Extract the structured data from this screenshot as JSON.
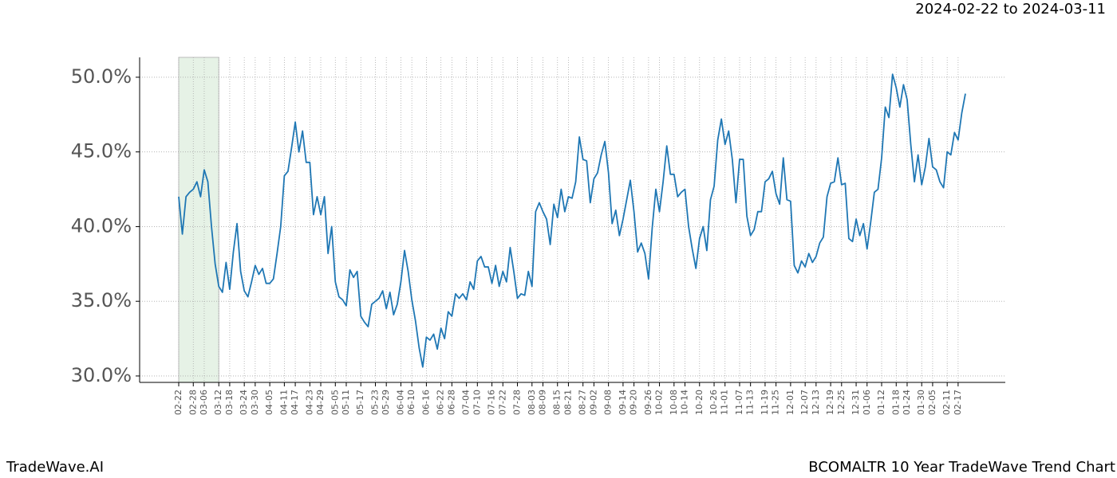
{
  "chart_data": {
    "type": "line",
    "title": "BCOMALTR 10 Year TradeWave Trend Chart",
    "subtitle": "2024-02-22 to 2024-03-11",
    "watermark": "TradeWave.AI",
    "color": "#1f77b4",
    "highlight_color": "#e6f2e6",
    "grid": true,
    "ylim": [
      29.57,
      51.33
    ],
    "yticks": [
      {
        "value": 30,
        "label": "30.0%"
      },
      {
        "value": 35,
        "label": "35.0%"
      },
      {
        "value": 40,
        "label": "40.0%"
      },
      {
        "value": 45,
        "label": "45.0%"
      },
      {
        "value": 50,
        "label": "50.0%"
      }
    ],
    "categories": [
      "02-22",
      null,
      null,
      null,
      "02-28",
      null,
      null,
      "03-06",
      null,
      null,
      null,
      "03-12",
      null,
      null,
      "03-18",
      null,
      null,
      null,
      "03-24",
      null,
      null,
      "03-30",
      null,
      null,
      null,
      "04-05",
      null,
      null,
      null,
      "04-11",
      null,
      null,
      "04-17",
      null,
      null,
      null,
      "04-23",
      null,
      null,
      "04-29",
      null,
      null,
      null,
      "05-05",
      null,
      null,
      "05-11",
      null,
      null,
      null,
      "05-17",
      null,
      null,
      null,
      "05-23",
      null,
      null,
      "05-29",
      null,
      null,
      null,
      "06-04",
      null,
      null,
      "06-10",
      null,
      null,
      null,
      "06-16",
      null,
      null,
      null,
      "06-22",
      null,
      null,
      "06-28",
      null,
      null,
      null,
      "07-04",
      null,
      null,
      "07-10",
      null,
      null,
      null,
      "07-16",
      null,
      null,
      "07-22",
      null,
      null,
      null,
      "07-28",
      null,
      null,
      null,
      "08-03",
      null,
      null,
      "08-09",
      null,
      null,
      null,
      "08-15",
      null,
      null,
      "08-21",
      null,
      null,
      null,
      "08-27",
      null,
      null,
      "09-02",
      null,
      null,
      null,
      "09-08",
      null,
      null,
      null,
      "09-14",
      null,
      null,
      "09-20",
      null,
      null,
      null,
      "09-26",
      null,
      null,
      "10-02",
      null,
      null,
      null,
      "10-08",
      null,
      null,
      "10-14",
      null,
      null,
      null,
      "10-20",
      null,
      null,
      null,
      "10-26",
      null,
      null,
      "11-01",
      null,
      null,
      null,
      "11-07",
      null,
      null,
      "11-13",
      null,
      null,
      null,
      "11-19",
      null,
      null,
      "11-25",
      null,
      null,
      null,
      "12-01",
      null,
      null,
      null,
      "12-07",
      null,
      null,
      "12-13",
      null,
      null,
      null,
      "12-19",
      null,
      null,
      "12-25",
      null,
      null,
      null,
      "12-31",
      null,
      null,
      "01-06",
      null,
      null,
      null,
      "01-12",
      null,
      null,
      null,
      "01-18",
      null,
      null,
      "01-24",
      null,
      null,
      null,
      "01-30",
      null,
      null,
      "02-05",
      null,
      null,
      null,
      "02-11",
      null,
      null,
      "02-17",
      null,
      null
    ],
    "values": [
      42.0,
      39.5,
      42,
      42.3,
      42.5,
      43,
      42,
      43.8,
      43,
      40,
      37.5,
      36,
      35.6,
      37.6,
      35.8,
      38.3,
      40.2,
      37,
      35.7,
      35.3,
      36.3,
      37.4,
      36.8,
      37.2,
      36.2,
      36.2,
      36.5,
      38.2,
      40,
      43.4,
      43.7,
      45.3,
      47,
      45,
      46.4,
      44.3,
      44.3,
      40.8,
      42,
      40.8,
      42,
      38.2,
      40,
      36.3,
      35.3,
      35.1,
      34.7,
      37.1,
      36.6,
      37,
      34,
      33.6,
      33.3,
      34.8,
      35,
      35.2,
      35.7,
      34.5,
      35.6,
      34.1,
      34.8,
      36.3,
      38.4,
      37,
      35.1,
      33.7,
      31.9,
      30.6,
      32.6,
      32.4,
      32.8,
      31.8,
      33.2,
      32.5,
      34.3,
      34,
      35.5,
      35.2,
      35.5,
      35.1,
      36.3,
      35.8,
      37.7,
      38,
      37.3,
      37.3,
      36.2,
      37.4,
      36,
      37,
      36.3,
      38.6,
      37,
      35.2,
      35.5,
      35.4,
      37,
      36,
      41,
      41.6,
      41,
      40.5,
      38.8,
      41.5,
      40.6,
      42.5,
      41,
      42,
      41.9,
      43,
      46,
      44.5,
      44.4,
      41.6,
      43.2,
      43.6,
      44.8,
      45.7,
      43.6,
      40.2,
      41.1,
      39.4,
      40.5,
      41.8,
      43.1,
      41,
      38.3,
      38.9,
      38.2,
      36.5,
      39.9,
      42.5,
      41,
      43,
      45.4,
      43.5,
      43.5,
      42,
      42.3,
      42.5,
      40,
      38.5,
      37.2,
      39.2,
      40,
      38.4,
      41.8,
      42.7,
      45.8,
      47.2,
      45.5,
      46.4,
      44.5,
      41.6,
      44.5,
      44.5,
      40.7,
      39.4,
      39.8,
      41,
      41,
      43,
      43.2,
      43.7,
      42.2,
      41.5,
      44.6,
      41.8,
      41.7,
      37.4,
      36.9,
      37.7,
      37.3,
      38.2,
      37.6,
      38,
      38.9,
      39.3,
      42,
      42.9,
      43,
      44.6,
      42.8,
      42.9,
      39.2,
      39,
      40.5,
      39.4,
      40.2,
      38.5,
      40.3,
      42.3,
      42.5,
      44.6,
      48,
      47.3,
      50.2,
      49.3,
      48,
      49.5,
      48.5,
      45.5,
      43,
      44.8,
      42.8,
      44,
      45.9,
      44,
      43.8,
      43,
      42.6,
      45,
      44.8,
      46.3,
      45.8,
      47.6,
      48.9
    ]
  }
}
